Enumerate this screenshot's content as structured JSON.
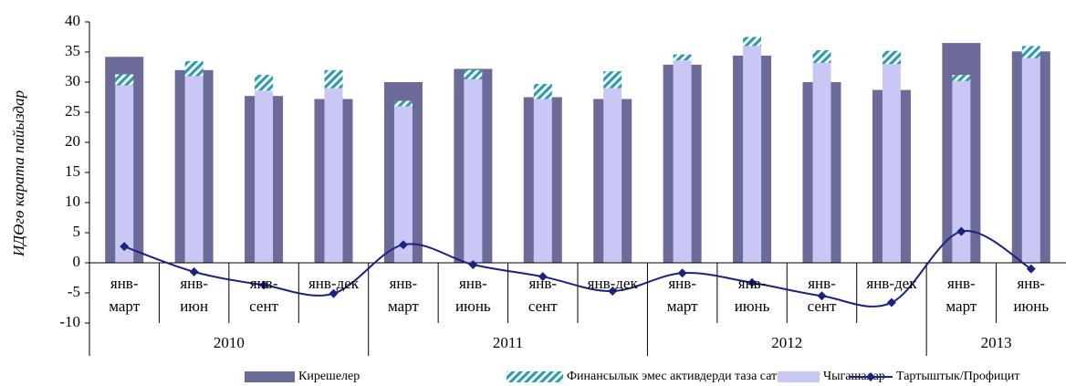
{
  "chart_data": {
    "type": "bar",
    "y_label": "ИДӨгө карата пайыздар",
    "groups": [
      {
        "name": "2010",
        "categories": [
          "янв-\nмарт",
          "янв-\nиюн",
          "янв-\nсент",
          "янв-дек"
        ]
      },
      {
        "name": "2011",
        "categories": [
          "янв-\nмарт",
          "янв-\nиюнь",
          "янв-\nсент",
          "янв-дек"
        ]
      },
      {
        "name": "2012",
        "categories": [
          "янв-\nмарт",
          "янв-\nиюнь",
          "янв-\nсент",
          "янв-дек"
        ]
      },
      {
        "name": "2013",
        "categories": [
          "янв-\nмарт",
          "янв-\nиюнь"
        ]
      }
    ],
    "series": [
      {
        "name": "Кирешелер",
        "type": "bar",
        "color": "#6b6a99",
        "values": [
          34.2,
          32.0,
          27.7,
          27.2,
          30.0,
          32.2,
          27.5,
          27.2,
          32.9,
          34.4,
          30.0,
          28.7,
          36.5,
          35.1
        ]
      },
      {
        "name": "Финансылык эмес активдерди таза сатып алуу",
        "type": "bar",
        "stacked": true,
        "color": "#2e9cae",
        "hatch": true,
        "values": [
          1.8,
          2.5,
          2.6,
          3.0,
          0.9,
          1.5,
          2.5,
          2.8,
          1.0,
          1.5,
          2.1,
          2.2,
          1.0,
          2.0
        ]
      },
      {
        "name": "Чыгашалар",
        "type": "bar",
        "stacked": true,
        "color": "#c9c8f5",
        "values": [
          29.5,
          31.0,
          28.6,
          29.0,
          26.0,
          30.5,
          27.2,
          29.0,
          33.6,
          36.0,
          33.2,
          33.0,
          30.2,
          34.0
        ]
      },
      {
        "name": "Тартыштык/Профицит",
        "type": "line",
        "color": "#1a237e",
        "values": [
          2.7,
          -1.5,
          -3.7,
          -5.1,
          3.0,
          -0.3,
          -2.3,
          -4.7,
          -1.7,
          -3.3,
          -5.5,
          -6.6,
          5.2,
          -1.0
        ]
      }
    ],
    "ylim": [
      -10,
      40
    ],
    "yticks": [
      -10,
      -5,
      0,
      5,
      10,
      15,
      20,
      25,
      30,
      35,
      40
    ],
    "grid": false,
    "legend": "bottom"
  }
}
